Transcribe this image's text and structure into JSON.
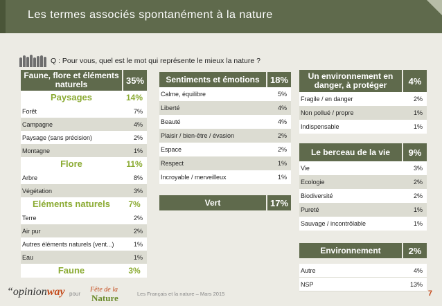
{
  "title": "Les termes associés spontanément à la nature",
  "question": "Q : Pour vous, quel est le mot qui représente le mieux la nature ?",
  "colors": {
    "header": "#5f6a4c",
    "sub": "#8bab33",
    "row_alt": "#dcdcd2",
    "page_num": "#c44a1b"
  },
  "chart_data": {
    "type": "table",
    "columns": [
      {
        "groups": [
          {
            "label": "Faune, flore et éléments naturels",
            "value": "35%",
            "kind": "header",
            "items": []
          },
          {
            "label": "Paysages",
            "value": "14%",
            "kind": "sub",
            "items": [
              {
                "label": "Forêt",
                "value": "7%"
              },
              {
                "label": "Campagne",
                "value": "4%"
              },
              {
                "label": "Paysage (sans précision)",
                "value": "2%"
              },
              {
                "label": "Montagne",
                "value": "1%"
              }
            ]
          },
          {
            "label": "Flore",
            "value": "11%",
            "kind": "sub",
            "items": [
              {
                "label": "Arbre",
                "value": "8%"
              },
              {
                "label": "Végétation",
                "value": "3%"
              }
            ]
          },
          {
            "label": "Eléments naturels",
            "value": "7%",
            "kind": "sub",
            "items": [
              {
                "label": "Terre",
                "value": "2%"
              },
              {
                "label": "Air pur",
                "value": "2%"
              },
              {
                "label": "Autres éléments naturels (vent...)",
                "value": "1%"
              },
              {
                "label": "Eau",
                "value": "1%"
              }
            ]
          },
          {
            "label": "Faune",
            "value": "3%",
            "kind": "sub",
            "items": []
          }
        ]
      },
      {
        "groups": [
          {
            "label": "Sentiments et émotions",
            "value": "18%",
            "kind": "header",
            "items": [
              {
                "label": "Calme, équilibre",
                "value": "5%"
              },
              {
                "label": "Liberté",
                "value": "4%"
              },
              {
                "label": "Beauté",
                "value": "4%"
              },
              {
                "label": "Plaisir / bien-être / évasion",
                "value": "2%"
              },
              {
                "label": "Espace",
                "value": "2%"
              },
              {
                "label": "Respect",
                "value": "1%"
              },
              {
                "label": "Incroyable / merveilleux",
                "value": "1%"
              }
            ]
          },
          {
            "label": "Vert",
            "value": "17%",
            "kind": "header",
            "items": []
          }
        ]
      },
      {
        "groups": [
          {
            "label": "Un environnement en danger, à protéger",
            "value": "4%",
            "kind": "header",
            "items": [
              {
                "label": "Fragile / en danger",
                "value": "2%"
              },
              {
                "label": "Non pollué / propre",
                "value": "1%"
              },
              {
                "label": "Indispensable",
                "value": "1%"
              }
            ]
          },
          {
            "label": "Le berceau de la vie",
            "value": "9%",
            "kind": "header",
            "items": [
              {
                "label": "Vie",
                "value": "3%"
              },
              {
                "label": "Ecologie",
                "value": "2%"
              },
              {
                "label": "Biodiversité",
                "value": "2%"
              },
              {
                "label": "Pureté",
                "value": "1%"
              },
              {
                "label": "Sauvage / incontrôlable",
                "value": "1%"
              }
            ]
          },
          {
            "label": "Environnement",
            "value": "2%",
            "kind": "header",
            "items": []
          },
          {
            "label": "",
            "value": "",
            "kind": "none",
            "items": [
              {
                "label": "Autre",
                "value": "4%"
              },
              {
                "label": "NSP",
                "value": "13%"
              }
            ]
          }
        ]
      }
    ]
  },
  "footer": {
    "logo_pre": "“opinion",
    "logo_bold": "way",
    "pour": "pour",
    "fete_logo": "Fête de la Nature",
    "source": "Les Français et la nature – Mars 2015",
    "page": "7"
  }
}
